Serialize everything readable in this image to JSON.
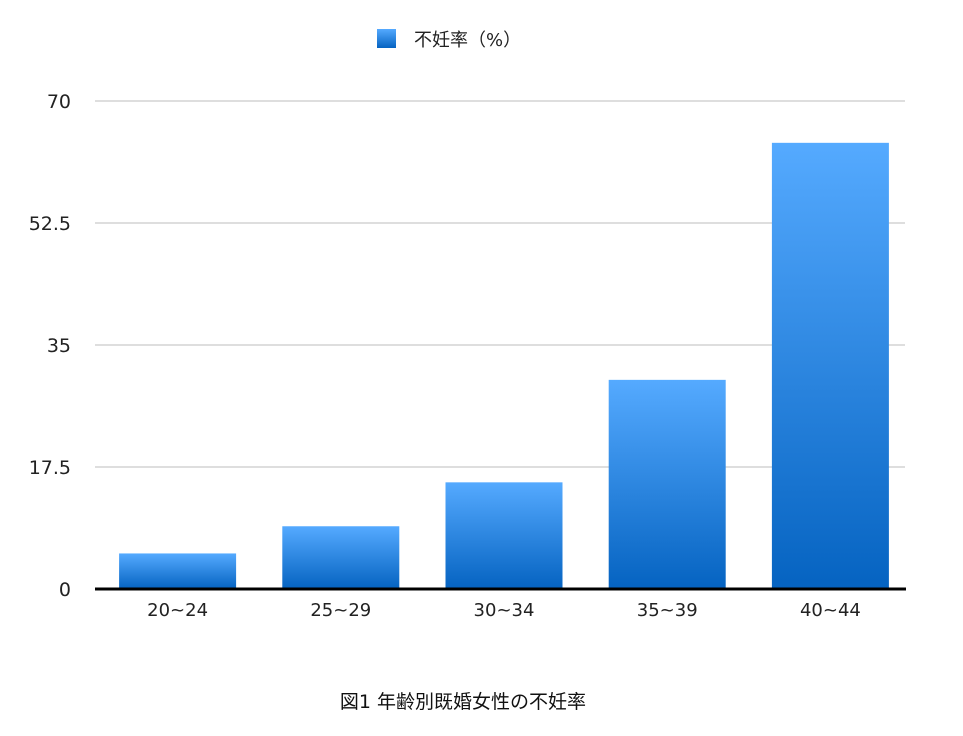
{
  "chart_data": {
    "type": "bar",
    "title": "図1 年齢別既婚女性の不妊率",
    "xlabel": "",
    "ylabel": "",
    "categories": [
      "20~24",
      "25~29",
      "30~34",
      "35~39",
      "40~44"
    ],
    "series": [
      {
        "name": "不妊率（%）",
        "values": [
          5.1,
          9.0,
          15.3,
          30.0,
          64.0
        ],
        "color": "#2a86e0"
      }
    ],
    "ylim": [
      0,
      70
    ],
    "yticks": [
      "0",
      "17.5",
      "35",
      "52.5",
      "70"
    ],
    "grid": true,
    "legend": "top-center",
    "gradient": {
      "top": "#55aaff",
      "bottom": "#0563c1"
    }
  }
}
